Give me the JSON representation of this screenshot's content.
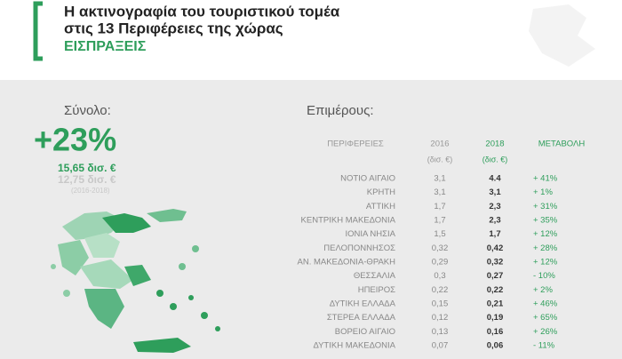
{
  "header": {
    "title_line1": "Η ακτινογραφία του τουριστικού τομέα",
    "title_line2": "στις 13 Περιφέρειες της χώρας",
    "subtitle": "ΕΙΣΠΡΑΞΕΙΣ"
  },
  "summary": {
    "label": "Σύνολο:",
    "change": "+23%",
    "value_2018": "15,65 δισ. €",
    "value_2016": "12,75 δισ. €",
    "period": "(2016-2018)"
  },
  "table": {
    "title": "Επιμέρους:",
    "columns": [
      "ΠΕΡΙΦΕΡΕΙΕΣ",
      "2016",
      "2018",
      "ΜΕΤΑΒΟΛΗ"
    ],
    "units": [
      "(δισ. €)",
      "(δισ. €)"
    ],
    "rows": [
      [
        "ΝΟΤΙΟ ΑΙΓΑΙΟ",
        "3,1",
        "4.4",
        "+ 41%"
      ],
      [
        "ΚΡΗΤΗ",
        "3,1",
        "3,1",
        "+ 1%"
      ],
      [
        "ΑΤΤΙΚΗ",
        "1,7",
        "2,3",
        "+ 31%"
      ],
      [
        "ΚΕΝΤΡΙΚΗ ΜΑΚΕΔΟΝΙΑ",
        "1,7",
        "2,3",
        "+ 35%"
      ],
      [
        "ΙΟΝΙΑ ΝΗΣΙΑ",
        "1,5",
        "1,7",
        "+ 12%"
      ],
      [
        "ΠΕΛΟΠΟΝΝΗΣΟΣ",
        "0,32",
        "0,42",
        "+ 28%"
      ],
      [
        "ΑΝ. ΜΑΚΕΔΟΝΙΑ-ΘΡΑΚΗ",
        "0,29",
        "0,32",
        "+ 12%"
      ],
      [
        "ΘΕΣΣΑΛΙΑ",
        "0,3",
        "0,27",
        "- 10%"
      ],
      [
        "ΗΠΕΙΡΟΣ",
        "0,22",
        "0,22",
        "+ 2%"
      ],
      [
        "ΔΥΤΙΚΗ ΕΛΛΑΔΑ",
        "0,15",
        "0,21",
        "+ 46%"
      ],
      [
        "ΣΤΕΡΕΑ ΕΛΛΑΔΑ",
        "0,12",
        "0,19",
        "+ 65%"
      ],
      [
        "ΒΟΡΕΙΟ ΑΙΓΑΙΟ",
        "0,13",
        "0,16",
        "+ 26%"
      ],
      [
        "ΔΥΤΙΚΗ ΜΑΚΕΔΟΝΙΑ",
        "0,07",
        "0,06",
        "- 11%"
      ]
    ]
  }
}
